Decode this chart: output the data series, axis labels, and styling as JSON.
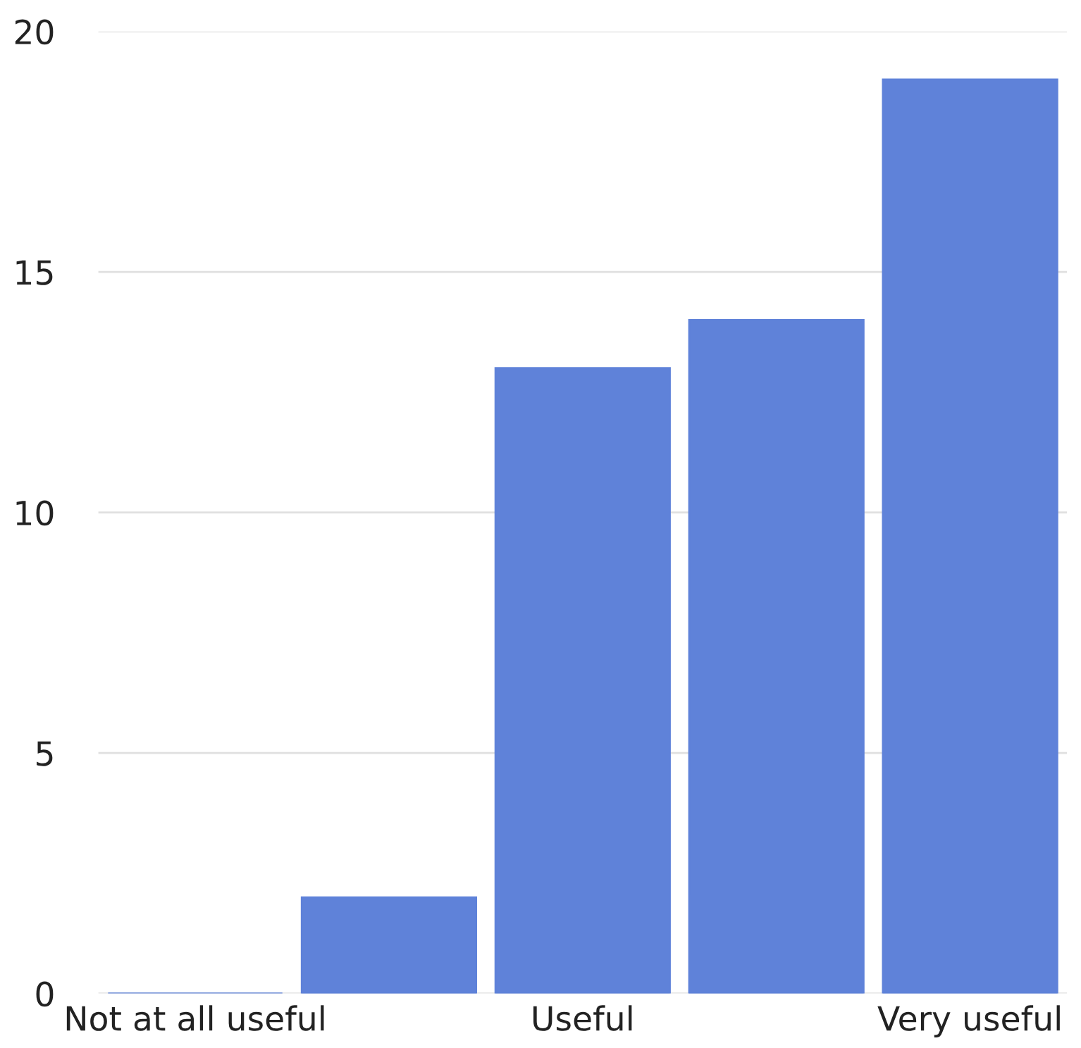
{
  "chart_data": {
    "type": "bar",
    "categories": [
      "Not at all useful",
      null,
      "Useful",
      null,
      "Very useful"
    ],
    "values": [
      0,
      2,
      13,
      14,
      19
    ],
    "color": "#5f82d9",
    "ylim": [
      0,
      20
    ],
    "yticks": [
      0,
      5,
      10,
      15,
      20
    ],
    "grid": "y"
  }
}
